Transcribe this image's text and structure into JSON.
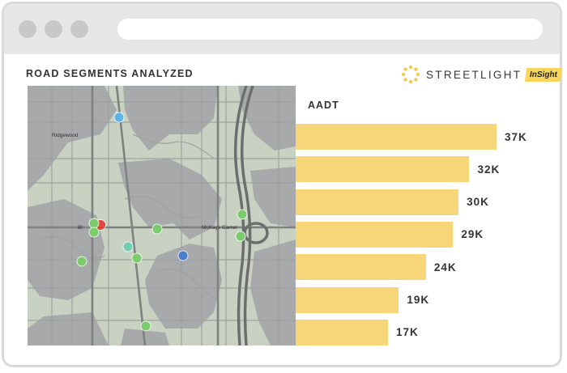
{
  "section": {
    "title": "ROAD SEGMENTS ANALYZED"
  },
  "brand": {
    "name": "STREETLIGHT",
    "badge": "InSight",
    "logo_icon": "sun-burst-logo"
  },
  "map": {
    "labels": {
      "ridgewood": "Ridgewood",
      "west": "Bl",
      "west_suffix": "in",
      "mckays": "McKays Camel"
    },
    "colors": {
      "base": "#c9d1c2",
      "shade": "#a7a9ab",
      "road": "#9da2a0",
      "highway": "#6c6f6e"
    },
    "markers": [
      {
        "id": "marker-blue-light",
        "color": "#5cb4e6"
      },
      {
        "id": "marker-red",
        "color": "#e0463c"
      },
      {
        "id": "marker-green",
        "color": "#7ccc6e"
      },
      {
        "id": "marker-teal",
        "color": "#72ccb0"
      },
      {
        "id": "marker-blue",
        "color": "#4a7fcb"
      }
    ]
  },
  "chart_data": {
    "type": "bar",
    "title": "AADT",
    "orientation": "horizontal",
    "values": [
      37,
      32,
      30,
      29,
      24,
      19,
      17
    ],
    "value_labels": [
      "37K",
      "32K",
      "30K",
      "29K",
      "24K",
      "19K",
      "17K"
    ],
    "unit": "K",
    "bar_color": "#f7d67a",
    "xlim": [
      0,
      37
    ]
  }
}
